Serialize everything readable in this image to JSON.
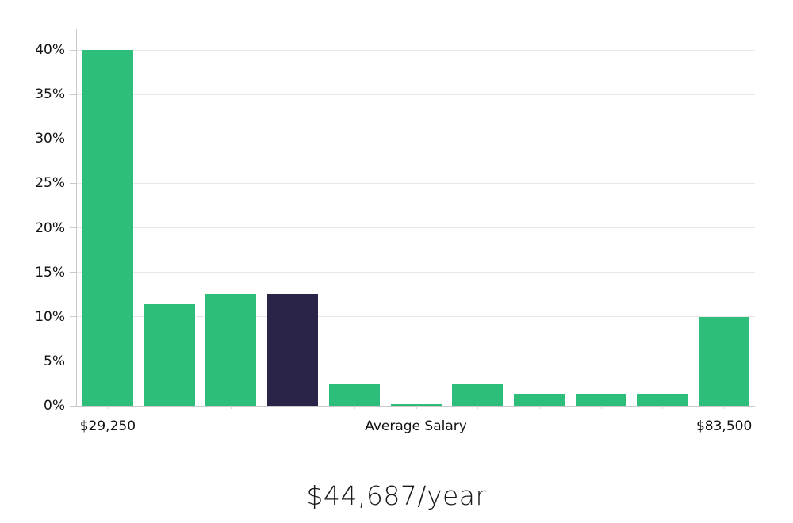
{
  "chart_data": {
    "type": "bar",
    "title": "$44,687/year",
    "values": [
      40,
      11.4,
      12.6,
      12.6,
      2.5,
      0.15,
      2.5,
      1.3,
      1.3,
      1.3,
      10
    ],
    "highlight_index": 3,
    "y_ticks": [
      0,
      5,
      10,
      15,
      20,
      25,
      30,
      35,
      40
    ],
    "y_tick_suffix": "%",
    "ylim": [
      0,
      42.3
    ],
    "x_labels": [
      {
        "text": "$29,250",
        "bar_index": 0
      },
      {
        "text": "Average Salary",
        "bar_index": 5
      },
      {
        "text": "$83,500",
        "bar_index": 10
      }
    ],
    "grid": true,
    "legend": "none",
    "colors": {
      "bar": "#2dbe7b",
      "highlight_bar": "#2a2548",
      "gridline": "#e8e8e8",
      "axis": "#c9c9c9",
      "tick_text": "#111111",
      "title_text": "#1a1a1a"
    }
  }
}
